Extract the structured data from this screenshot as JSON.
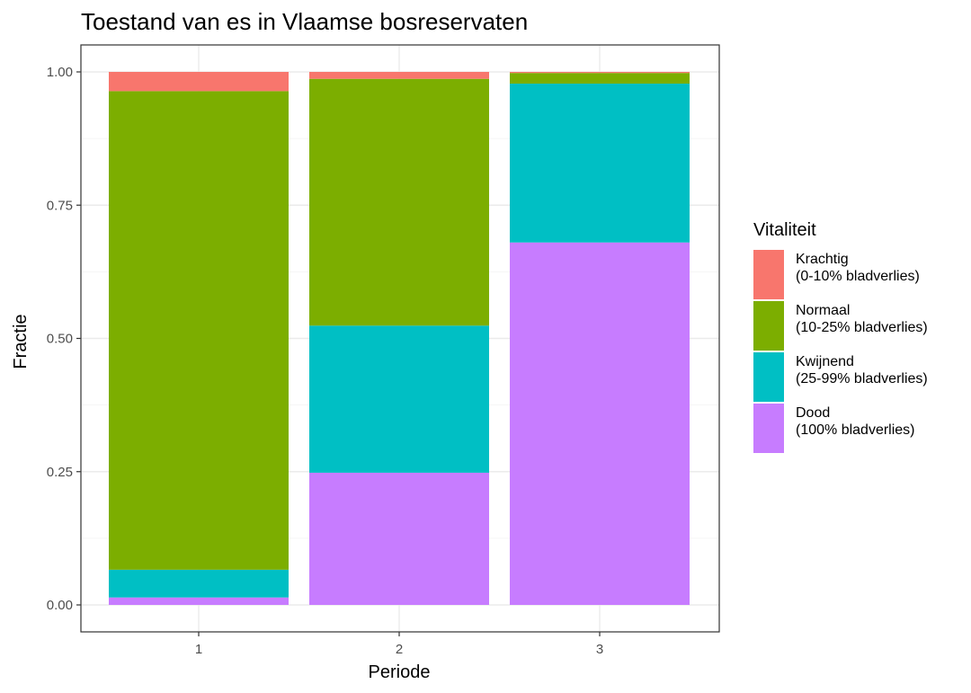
{
  "chart_data": {
    "type": "bar",
    "stacked": true,
    "title": "Toestand van es in Vlaamse bosreservaten",
    "xlabel": "Periode",
    "ylabel": "Fractie",
    "categories": [
      "1",
      "2",
      "3"
    ],
    "ylim": [
      0,
      1
    ],
    "yticks": [
      "0.00",
      "0.25",
      "0.50",
      "0.75",
      "1.00"
    ],
    "grid": true,
    "legend": {
      "title": "Vitaliteit",
      "position": "right"
    },
    "series": [
      {
        "name": "Dood",
        "label_lines": [
          "Dood",
          "(100% bladverlies)"
        ],
        "color": "#C77CFF",
        "values": [
          0.014,
          0.248,
          0.68
        ]
      },
      {
        "name": "Kwijnend",
        "label_lines": [
          "Kwijnend",
          "(25-99% bladverlies)"
        ],
        "color": "#00BFC4",
        "values": [
          0.052,
          0.276,
          0.298
        ]
      },
      {
        "name": "Normaal",
        "label_lines": [
          "Normaal",
          "(10-25% bladverlies)"
        ],
        "color": "#7CAE00",
        "values": [
          0.898,
          0.463,
          0.02
        ]
      },
      {
        "name": "Krachtig",
        "label_lines": [
          "Krachtig",
          "(0-10% bladverlies)"
        ],
        "color": "#F8766D",
        "values": [
          0.036,
          0.013,
          0.002
        ]
      }
    ]
  }
}
